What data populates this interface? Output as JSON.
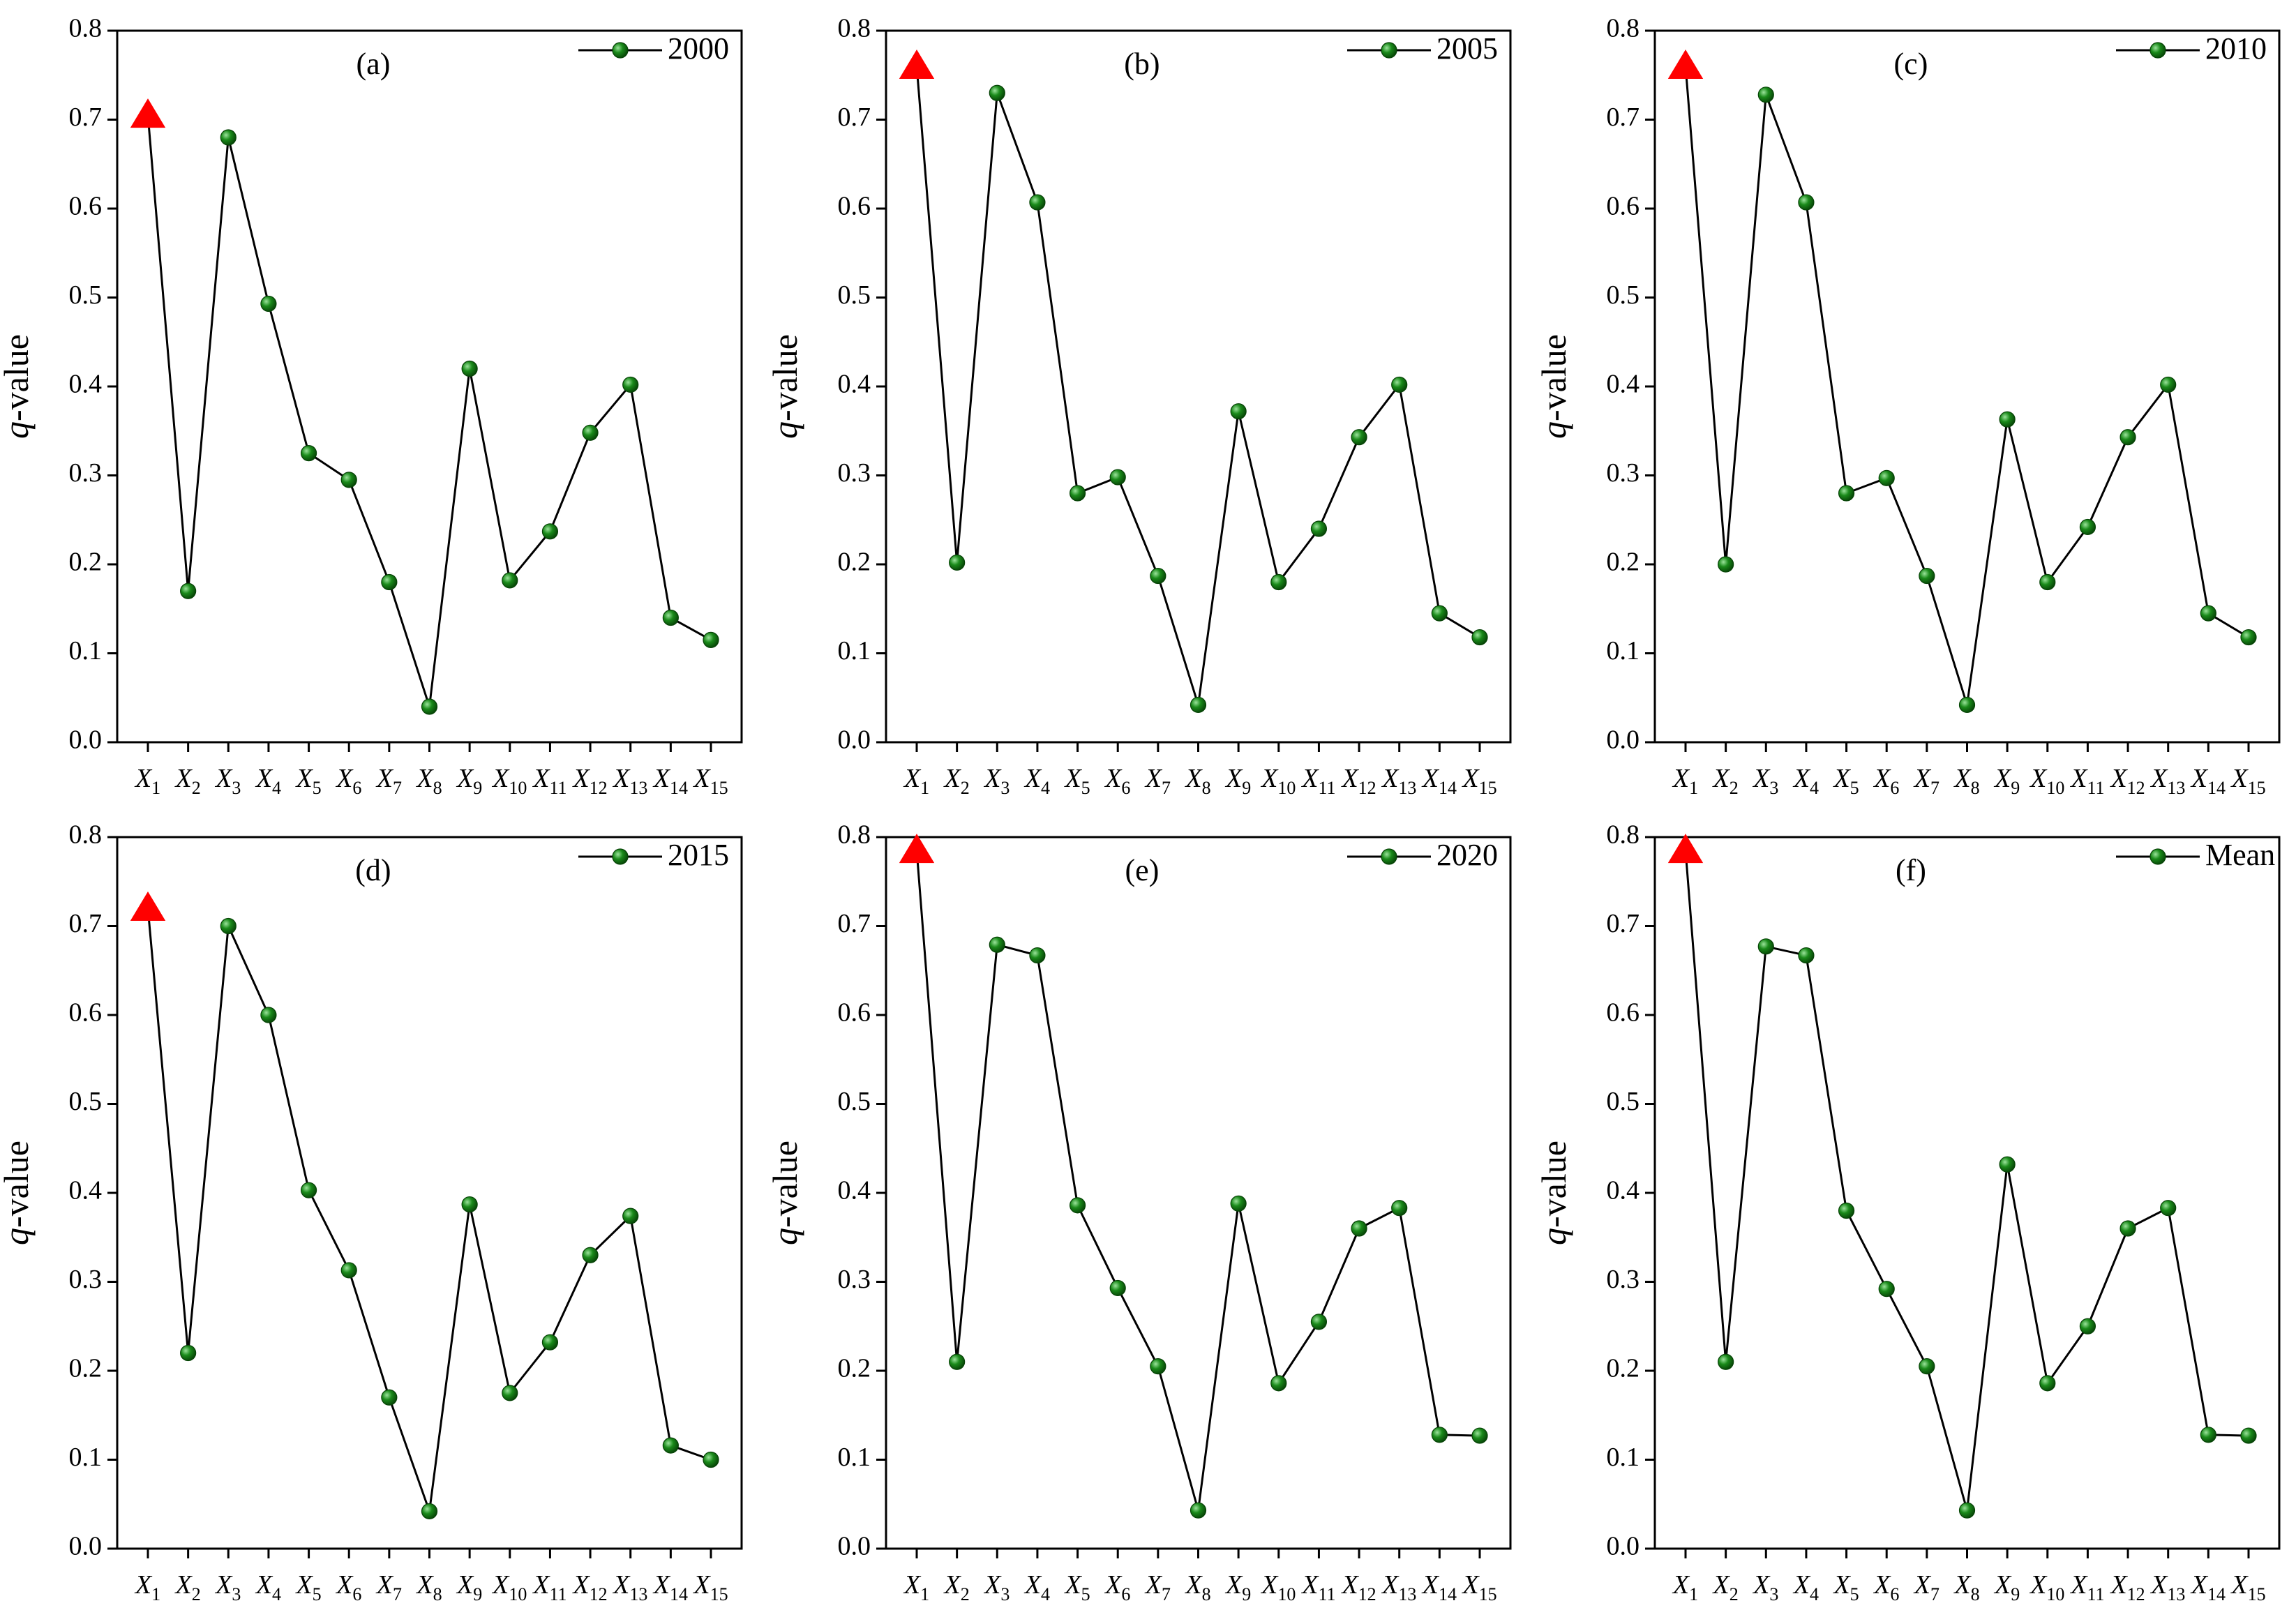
{
  "figure": {
    "ylabel_italic": "q",
    "ylabel_rest": "-value",
    "colors": {
      "marker": "#1a8a1a",
      "highlight": "#ff0000",
      "line": "#000000"
    },
    "marker_icon": "green-sphere",
    "highlight_icon": "red-triangle"
  },
  "chart_data": [
    {
      "type": "line",
      "panel_label": "(a)",
      "legend": "2000",
      "categories": [
        "X1",
        "X2",
        "X3",
        "X4",
        "X5",
        "X6",
        "X7",
        "X8",
        "X9",
        "X10",
        "X11",
        "X12",
        "X13",
        "X14",
        "X15"
      ],
      "values": [
        0.705,
        0.17,
        0.68,
        0.493,
        0.325,
        0.295,
        0.18,
        0.04,
        0.42,
        0.182,
        0.237,
        0.348,
        0.402,
        0.14,
        0.115
      ],
      "highlight_index": 0,
      "ylim": [
        0.0,
        0.8
      ],
      "yticks": [
        "0.0",
        "0.1",
        "0.2",
        "0.3",
        "0.4",
        "0.5",
        "0.6",
        "0.7",
        "0.8"
      ],
      "xlabel": "",
      "ylabel": "q-value",
      "legend_position": "top-right"
    },
    {
      "type": "line",
      "panel_label": "(b)",
      "legend": "2005",
      "categories": [
        "X1",
        "X2",
        "X3",
        "X4",
        "X5",
        "X6",
        "X7",
        "X8",
        "X9",
        "X10",
        "X11",
        "X12",
        "X13",
        "X14",
        "X15"
      ],
      "values": [
        0.76,
        0.202,
        0.73,
        0.607,
        0.28,
        0.298,
        0.187,
        0.042,
        0.372,
        0.18,
        0.24,
        0.343,
        0.402,
        0.145,
        0.118
      ],
      "highlight_index": 0,
      "ylim": [
        0.0,
        0.8
      ],
      "yticks": [
        "0.0",
        "0.1",
        "0.2",
        "0.3",
        "0.4",
        "0.5",
        "0.6",
        "0.7",
        "0.8"
      ],
      "xlabel": "",
      "ylabel": "q-value",
      "legend_position": "top-right"
    },
    {
      "type": "line",
      "panel_label": "(c)",
      "legend": "2010",
      "categories": [
        "X1",
        "X2",
        "X3",
        "X4",
        "X5",
        "X6",
        "X7",
        "X8",
        "X9",
        "X10",
        "X11",
        "X12",
        "X13",
        "X14",
        "X15"
      ],
      "values": [
        0.76,
        0.2,
        0.728,
        0.607,
        0.28,
        0.297,
        0.187,
        0.042,
        0.363,
        0.18,
        0.242,
        0.343,
        0.402,
        0.145,
        0.118
      ],
      "highlight_index": 0,
      "ylim": [
        0.0,
        0.8
      ],
      "yticks": [
        "0.0",
        "0.1",
        "0.2",
        "0.3",
        "0.4",
        "0.5",
        "0.6",
        "0.7",
        "0.8"
      ],
      "xlabel": "",
      "ylabel": "q-value",
      "legend_position": "top-right"
    },
    {
      "type": "line",
      "panel_label": "(d)",
      "legend": "2015",
      "categories": [
        "X1",
        "X2",
        "X3",
        "X4",
        "X5",
        "X6",
        "X7",
        "X8",
        "X9",
        "X10",
        "X11",
        "X12",
        "X13",
        "X14",
        "X15"
      ],
      "values": [
        0.72,
        0.22,
        0.7,
        0.6,
        0.403,
        0.313,
        0.17,
        0.042,
        0.387,
        0.175,
        0.232,
        0.33,
        0.374,
        0.116,
        0.1
      ],
      "highlight_index": 0,
      "ylim": [
        0.0,
        0.8
      ],
      "yticks": [
        "0.0",
        "0.1",
        "0.2",
        "0.3",
        "0.4",
        "0.5",
        "0.6",
        "0.7",
        "0.8"
      ],
      "xlabel": "",
      "ylabel": "q-value",
      "legend_position": "top-right"
    },
    {
      "type": "line",
      "panel_label": "(e)",
      "legend": "2020",
      "categories": [
        "X1",
        "X2",
        "X3",
        "X4",
        "X5",
        "X6",
        "X7",
        "X8",
        "X9",
        "X10",
        "X11",
        "X12",
        "X13",
        "X14",
        "X15"
      ],
      "values": [
        0.785,
        0.21,
        0.679,
        0.667,
        0.386,
        0.293,
        0.205,
        0.043,
        0.388,
        0.186,
        0.255,
        0.36,
        0.383,
        0.128,
        0.127
      ],
      "highlight_index": 0,
      "ylim": [
        0.0,
        0.8
      ],
      "yticks": [
        "0.0",
        "0.1",
        "0.2",
        "0.3",
        "0.4",
        "0.5",
        "0.6",
        "0.7",
        "0.8"
      ],
      "xlabel": "",
      "ylabel": "q-value",
      "legend_position": "top-right"
    },
    {
      "type": "line",
      "panel_label": "(f)",
      "legend": "Mean",
      "categories": [
        "X1",
        "X2",
        "X3",
        "X4",
        "X5",
        "X6",
        "X7",
        "X8",
        "X9",
        "X10",
        "X11",
        "X12",
        "X13",
        "X14",
        "X15"
      ],
      "values": [
        0.785,
        0.21,
        0.677,
        0.667,
        0.38,
        0.292,
        0.205,
        0.043,
        0.432,
        0.186,
        0.25,
        0.36,
        0.383,
        0.128,
        0.127
      ],
      "highlight_index": 0,
      "ylim": [
        0.0,
        0.8
      ],
      "yticks": [
        "0.0",
        "0.1",
        "0.2",
        "0.3",
        "0.4",
        "0.5",
        "0.6",
        "0.7",
        "0.8"
      ],
      "xlabel": "",
      "ylabel": "q-value",
      "legend_position": "top-right"
    }
  ]
}
